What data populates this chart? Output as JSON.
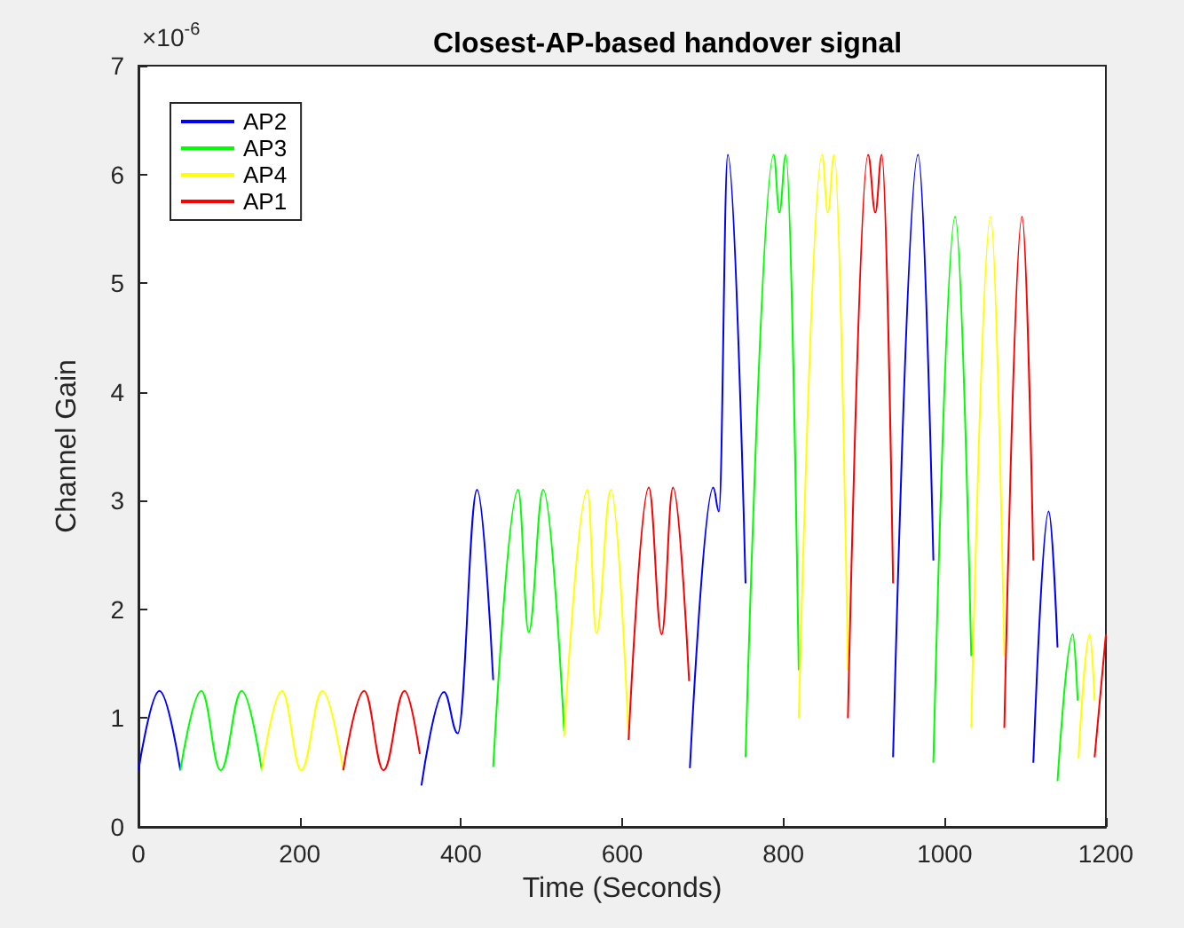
{
  "chart_data": {
    "type": "line",
    "title": "Closest-AP-based handover signal",
    "xlabel": "Time (Seconds)",
    "ylabel": "Channel Gain",
    "annotations": [
      "×10$^{-6}$"
    ],
    "xlim": [
      0,
      1200
    ],
    "xticks": [
      0,
      200,
      400,
      600,
      800,
      1000,
      1200
    ],
    "ylim": [
      0,
      7
    ],
    "yticks": [
      0,
      1,
      2,
      3,
      4,
      5,
      6,
      7
    ],
    "grid": false,
    "legend": "top left",
    "marker": "none",
    "line_style": "solid",
    "series": [
      {
        "name": "AP2",
        "color": "#0000ff",
        "x": [
          0,
          26,
          52,
          null,
          351,
          379,
          396,
          420,
          440,
          null,
          684,
          713,
          720,
          731,
          753,
          null,
          936,
          967,
          986,
          null,
          1110,
          1129,
          1140
        ],
        "values": [
          0.52,
          1.25,
          0.52,
          null,
          0.38,
          1.24,
          0.86,
          3.1,
          1.35,
          null,
          0.54,
          3.12,
          2.9,
          6.18,
          2.24,
          null,
          0.64,
          6.18,
          2.45,
          null,
          0.59,
          2.9,
          1.65
        ]
      },
      {
        "name": "AP3",
        "color": "#00ff00",
        "x": [
          52,
          78,
          102,
          128,
          153,
          null,
          440,
          471,
          484,
          502,
          528,
          null,
          753,
          788,
          795,
          803,
          819,
          null,
          986,
          1013,
          1033,
          null,
          1140,
          1159,
          1165
        ],
        "values": [
          0.52,
          1.25,
          0.52,
          1.25,
          0.52,
          null,
          0.55,
          3.1,
          1.79,
          3.1,
          0.88,
          null,
          0.64,
          6.18,
          5.65,
          6.18,
          1.44,
          null,
          0.59,
          5.61,
          1.57,
          null,
          0.42,
          1.77,
          1.16
        ]
      },
      {
        "name": "AP4",
        "color": "#ffff00",
        "x": [
          153,
          178,
          202,
          228,
          254,
          null,
          528,
          557,
          568,
          586,
          608,
          null,
          819,
          848,
          855,
          863,
          880,
          null,
          1033,
          1057,
          1074,
          null,
          1166,
          1180,
          1186
        ],
        "values": [
          0.52,
          1.25,
          0.52,
          1.25,
          0.52,
          null,
          0.83,
          3.1,
          1.78,
          3.1,
          0.8,
          null,
          1.0,
          6.18,
          5.65,
          6.18,
          1.44,
          null,
          0.91,
          5.61,
          1.57,
          null,
          0.63,
          1.77,
          1.16
        ]
      },
      {
        "name": "AP1",
        "color": "#ff0000",
        "x": [
          254,
          280,
          304,
          330,
          349,
          null,
          608,
          633,
          649,
          663,
          683,
          null,
          880,
          905,
          914,
          922,
          936,
          null,
          1074,
          1096,
          1110,
          null,
          1186,
          1200
        ],
        "values": [
          0.52,
          1.25,
          0.52,
          1.25,
          0.67,
          null,
          0.8,
          3.12,
          1.77,
          3.12,
          1.34,
          null,
          1.0,
          6.18,
          5.65,
          6.18,
          2.24,
          null,
          0.91,
          5.61,
          2.45,
          null,
          0.64,
          1.77
        ]
      }
    ]
  }
}
